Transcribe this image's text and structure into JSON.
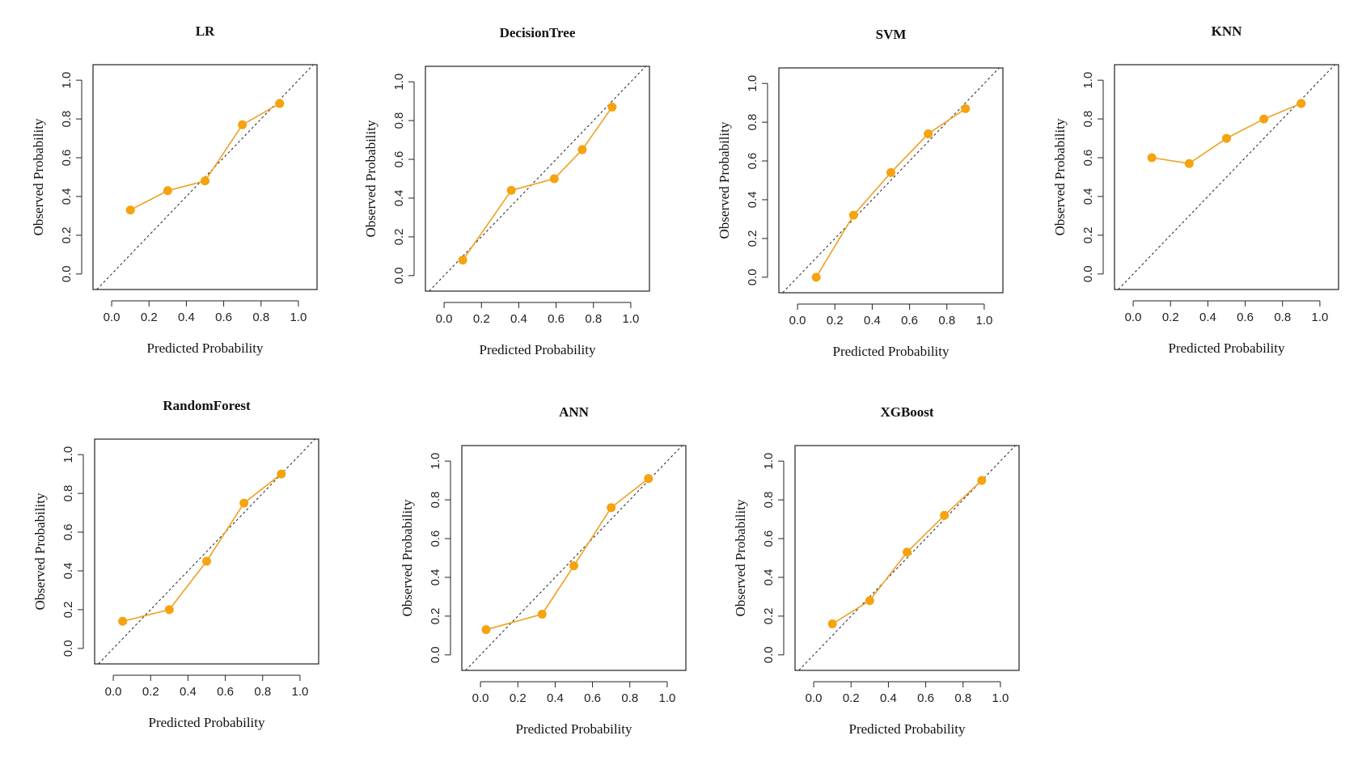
{
  "figure": {
    "x_label": "Predicted Probability",
    "y_label": "Observed Probability"
  },
  "chart_data": [
    {
      "type": "line",
      "title": "LR",
      "xlabel": "Predicted Probability",
      "ylabel": "Observed Probability",
      "xlim": [
        -0.1,
        1.1
      ],
      "ylim": [
        -0.08,
        1.08
      ],
      "x_ticks": [
        "0.0",
        "0.2",
        "0.4",
        "0.6",
        "0.8",
        "1.0"
      ],
      "y_ticks": [
        "0.0",
        "0.2",
        "0.4",
        "0.6",
        "0.8",
        "1.0"
      ],
      "reference_line": "diagonal",
      "series": [
        {
          "x": [
            0.1,
            0.3,
            0.5,
            0.7,
            0.9
          ],
          "y": [
            0.33,
            0.43,
            0.48,
            0.77,
            0.88
          ]
        }
      ]
    },
    {
      "type": "line",
      "title": "DecisionTree",
      "xlabel": "Predicted Probability",
      "ylabel": "Observed Probability",
      "xlim": [
        -0.1,
        1.1
      ],
      "ylim": [
        -0.08,
        1.08
      ],
      "x_ticks": [
        "0.0",
        "0.2",
        "0.4",
        "0.6",
        "0.8",
        "1.0"
      ],
      "y_ticks": [
        "0.0",
        "0.2",
        "0.4",
        "0.6",
        "0.8",
        "1.0"
      ],
      "reference_line": "diagonal",
      "series": [
        {
          "x": [
            0.1,
            0.36,
            0.59,
            0.74,
            0.9
          ],
          "y": [
            0.08,
            0.44,
            0.5,
            0.65,
            0.87
          ]
        }
      ]
    },
    {
      "type": "line",
      "title": "SVM",
      "xlabel": "Predicted Probability",
      "ylabel": "Observed Probability",
      "xlim": [
        -0.1,
        1.1
      ],
      "ylim": [
        -0.08,
        1.08
      ],
      "x_ticks": [
        "0.0",
        "0.2",
        "0.4",
        "0.6",
        "0.8",
        "1.0"
      ],
      "y_ticks": [
        "0.0",
        "0.2",
        "0.4",
        "0.6",
        "0.8",
        "1.0"
      ],
      "reference_line": "diagonal",
      "series": [
        {
          "x": [
            0.1,
            0.3,
            0.5,
            0.7,
            0.9
          ],
          "y": [
            0.0,
            0.32,
            0.54,
            0.74,
            0.87
          ]
        }
      ]
    },
    {
      "type": "line",
      "title": "KNN",
      "xlabel": "Predicted Probability",
      "ylabel": "Observed Probability",
      "xlim": [
        -0.1,
        1.1
      ],
      "ylim": [
        -0.08,
        1.08
      ],
      "x_ticks": [
        "0.0",
        "0.2",
        "0.4",
        "0.6",
        "0.8",
        "1.0"
      ],
      "y_ticks": [
        "0.0",
        "0.2",
        "0.4",
        "0.6",
        "0.8",
        "1.0"
      ],
      "reference_line": "diagonal",
      "series": [
        {
          "x": [
            0.1,
            0.3,
            0.5,
            0.7,
            0.9
          ],
          "y": [
            0.6,
            0.57,
            0.7,
            0.8,
            0.88
          ]
        }
      ]
    },
    {
      "type": "line",
      "title": "RandomForest",
      "xlabel": "Predicted Probability",
      "ylabel": "Observed Probability",
      "xlim": [
        -0.1,
        1.1
      ],
      "ylim": [
        -0.08,
        1.08
      ],
      "x_ticks": [
        "0.0",
        "0.2",
        "0.4",
        "0.6",
        "0.8",
        "1.0"
      ],
      "y_ticks": [
        "0.0",
        "0.2",
        "0.4",
        "0.6",
        "0.8",
        "1.0"
      ],
      "reference_line": "diagonal",
      "series": [
        {
          "x": [
            0.05,
            0.3,
            0.5,
            0.7,
            0.9
          ],
          "y": [
            0.14,
            0.2,
            0.45,
            0.75,
            0.9
          ]
        }
      ]
    },
    {
      "type": "line",
      "title": "ANN",
      "xlabel": "Predicted Probability",
      "ylabel": "Observed Probability",
      "xlim": [
        -0.1,
        1.1
      ],
      "ylim": [
        -0.08,
        1.08
      ],
      "x_ticks": [
        "0.0",
        "0.2",
        "0.4",
        "0.6",
        "0.8",
        "1.0"
      ],
      "y_ticks": [
        "0.0",
        "0.2",
        "0.4",
        "0.6",
        "0.8",
        "1.0"
      ],
      "reference_line": "diagonal",
      "series": [
        {
          "x": [
            0.03,
            0.33,
            0.5,
            0.7,
            0.9
          ],
          "y": [
            0.13,
            0.21,
            0.46,
            0.76,
            0.91
          ]
        }
      ]
    },
    {
      "type": "line",
      "title": "XGBoost",
      "xlabel": "Predicted Probability",
      "ylabel": "Observed Probability",
      "xlim": [
        -0.1,
        1.1
      ],
      "ylim": [
        -0.08,
        1.08
      ],
      "x_ticks": [
        "0.0",
        "0.2",
        "0.4",
        "0.6",
        "0.8",
        "1.0"
      ],
      "y_ticks": [
        "0.0",
        "0.2",
        "0.4",
        "0.6",
        "0.8",
        "1.0"
      ],
      "reference_line": "diagonal",
      "series": [
        {
          "x": [
            0.1,
            0.3,
            0.5,
            0.7,
            0.9
          ],
          "y": [
            0.16,
            0.28,
            0.53,
            0.72,
            0.9
          ]
        }
      ]
    }
  ],
  "colors": {
    "series": "#F5A30F",
    "series_line": "#F0A020",
    "reference": "#222222",
    "frame": "#222222"
  }
}
